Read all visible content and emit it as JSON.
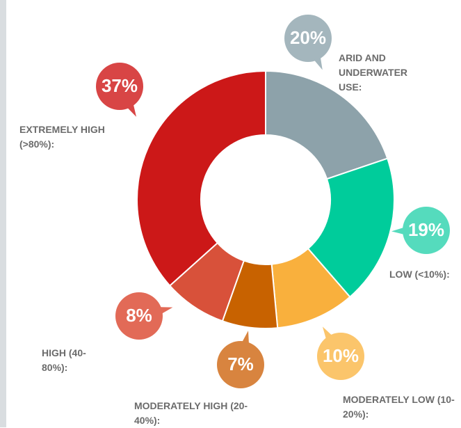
{
  "chart_data": {
    "type": "donut",
    "categories": [
      "ARID AND UNDERWATER USE:",
      "LOW (<10%):",
      "MODERATELY LOW (10-20%):",
      "MODERATELY HIGH (20-40%):",
      "HIGH (40-80%):",
      "EXTREMELY HIGH (>80%):"
    ],
    "values": [
      20,
      19,
      10,
      7,
      8,
      37
    ],
    "value_labels": [
      "20%",
      "19%",
      "10%",
      "7%",
      "8%",
      "37%"
    ],
    "colors": [
      "#8da2aa",
      "#00cc9b",
      "#f9b03d",
      "#c86200",
      "#d8513a",
      "#cc1818"
    ],
    "bubble_colors": [
      "#a4b6bd",
      "#55dbbd",
      "#fbc56b",
      "#d8843f",
      "#e26a57",
      "#d84545"
    ]
  }
}
